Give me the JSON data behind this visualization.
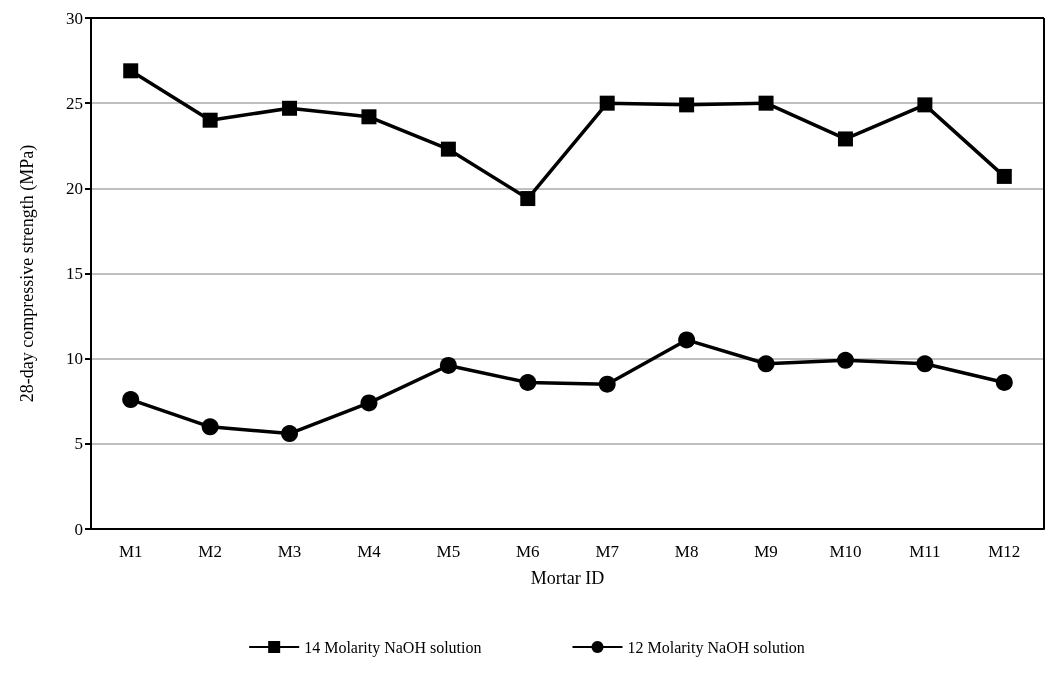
{
  "chart_data": {
    "type": "line",
    "xlabel": "Mortar ID",
    "ylabel": "28-day compressive strength (MPa)",
    "categories": [
      "M1",
      "M2",
      "M3",
      "M4",
      "M5",
      "M6",
      "M7",
      "M8",
      "M9",
      "M10",
      "M11",
      "M12"
    ],
    "series": [
      {
        "name": "14 Molarity NaOH solution",
        "color": "#000000",
        "marker": "square",
        "values": [
          26.9,
          24.0,
          24.7,
          24.2,
          22.3,
          19.4,
          25.0,
          24.9,
          25.0,
          22.9,
          24.9,
          20.7
        ]
      },
      {
        "name": "12 Molarity NaOH solution",
        "color": "#000000",
        "marker": "circle",
        "values": [
          7.6,
          6.0,
          5.6,
          7.4,
          9.6,
          8.6,
          8.5,
          11.1,
          9.7,
          9.9,
          9.7,
          8.6
        ]
      }
    ],
    "ylim": [
      0,
      30
    ],
    "yticks": [
      0,
      5,
      10,
      15,
      20,
      25,
      30
    ],
    "grid": "y",
    "legend": "bottom",
    "line_style": "solid"
  }
}
